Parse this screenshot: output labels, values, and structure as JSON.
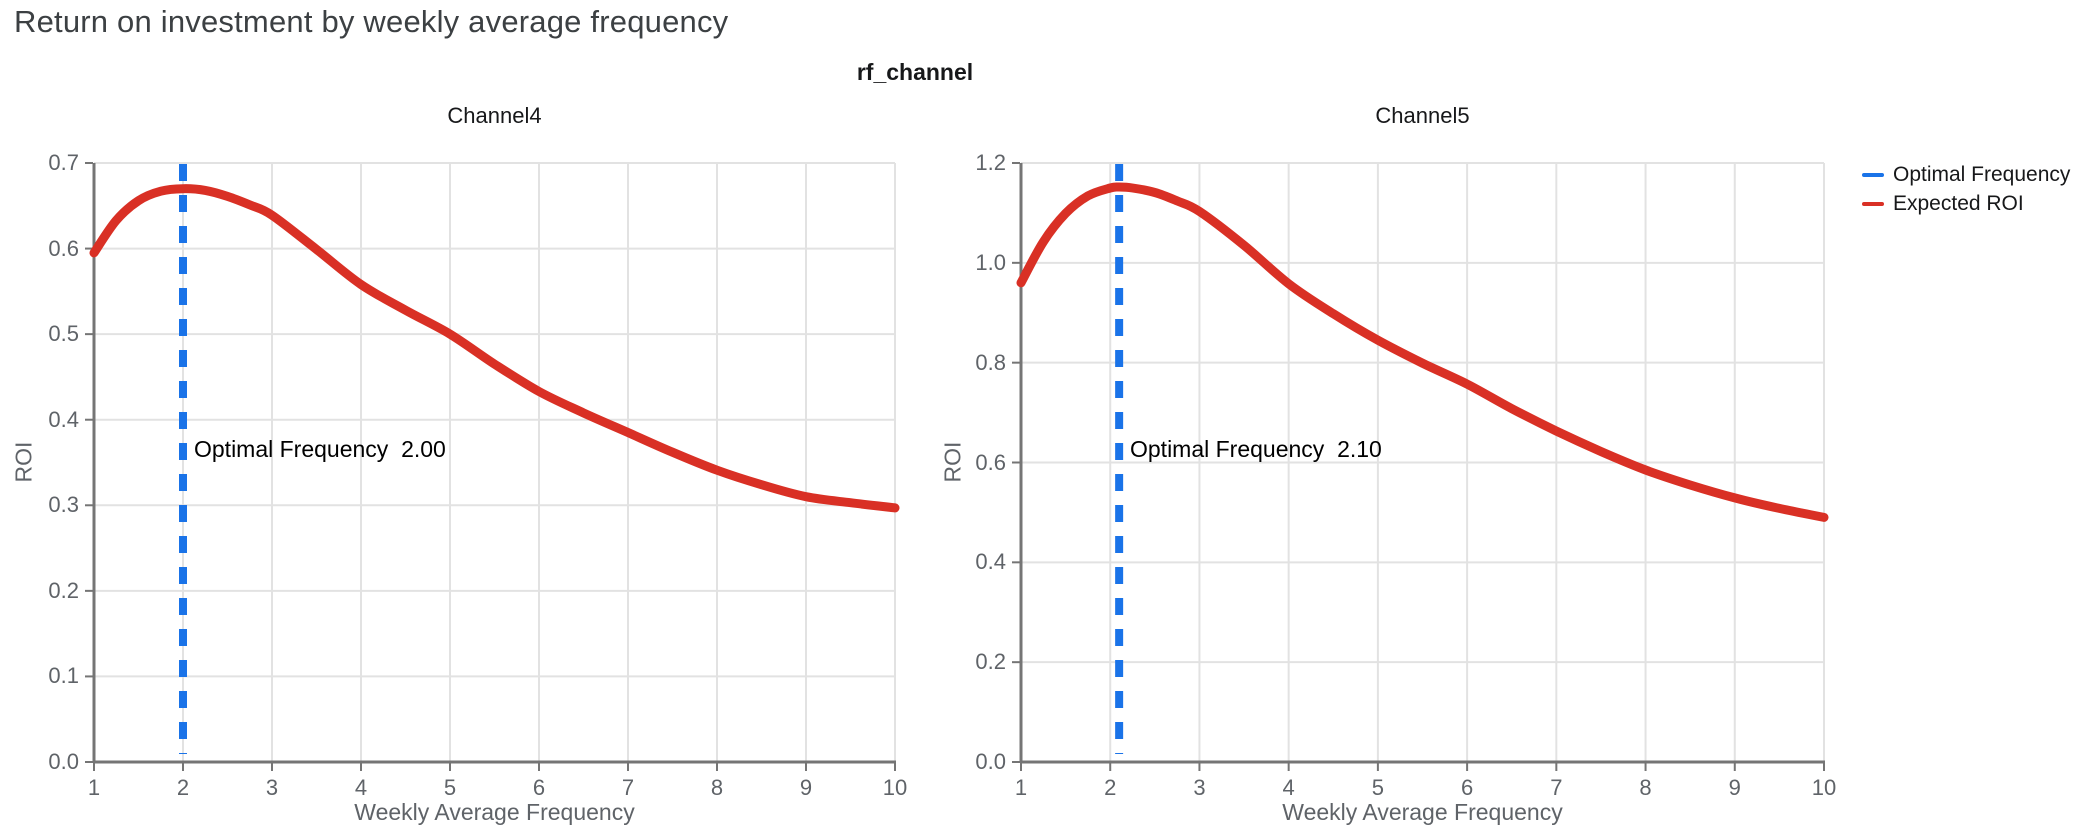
{
  "page_title": "Return on investment by weekly average frequency",
  "facet_title": "rf_channel",
  "colors": {
    "expected_roi_red": "#d93025",
    "optimal_frequency_blue": "#1a73e8",
    "gridline": "#e2e2e2",
    "axis_spine": "#757575",
    "tick_label": "#5f6368",
    "title_gray": "#3c4043"
  },
  "legend": {
    "items": [
      {
        "label": "Optimal Frequency",
        "color": "#1a73e8"
      },
      {
        "label": "Expected ROI",
        "color": "#d93025"
      }
    ]
  },
  "chart_data": [
    {
      "type": "line",
      "title": "Channel4",
      "xlabel": "Weekly Average Frequency",
      "ylabel": "ROI",
      "xlim": [
        1,
        10
      ],
      "ylim": [
        0,
        0.7
      ],
      "x_ticks": [
        "1",
        "2",
        "3",
        "4",
        "5",
        "6",
        "7",
        "8",
        "9",
        "10"
      ],
      "y_ticks": [
        "0.0",
        "0.1",
        "0.2",
        "0.3",
        "0.4",
        "0.5",
        "0.6",
        "0.7"
      ],
      "grid": true,
      "legend_position": "top-right-outside",
      "optimal_frequency": 2.0,
      "annotation": "Optimal Frequency  2.00",
      "series": [
        {
          "name": "Expected ROI",
          "x": [
            1,
            1.25,
            1.5,
            1.75,
            2,
            2.25,
            2.5,
            2.75,
            3,
            3.5,
            4,
            4.5,
            5,
            5.5,
            6,
            6.5,
            7,
            7.5,
            8,
            8.5,
            9,
            9.5,
            10
          ],
          "y": [
            0.595,
            0.633,
            0.656,
            0.667,
            0.67,
            0.668,
            0.661,
            0.651,
            0.639,
            0.599,
            0.558,
            0.528,
            0.5,
            0.465,
            0.433,
            0.408,
            0.385,
            0.362,
            0.341,
            0.324,
            0.31,
            0.303,
            0.297
          ]
        }
      ]
    },
    {
      "type": "line",
      "title": "Channel5",
      "xlabel": "Weekly Average Frequency",
      "ylabel": "ROI",
      "xlim": [
        1,
        10
      ],
      "ylim": [
        0,
        1.2
      ],
      "x_ticks": [
        "1",
        "2",
        "3",
        "4",
        "5",
        "6",
        "7",
        "8",
        "9",
        "10"
      ],
      "y_ticks": [
        "0.0",
        "0.2",
        "0.4",
        "0.6",
        "0.8",
        "1.0",
        "1.2"
      ],
      "grid": true,
      "legend_position": "top-right-outside",
      "optimal_frequency": 2.1,
      "annotation": "Optimal Frequency  2.10",
      "series": [
        {
          "name": "Expected ROI",
          "x": [
            1,
            1.25,
            1.5,
            1.75,
            2,
            2.1,
            2.25,
            2.5,
            2.75,
            3,
            3.5,
            4,
            4.5,
            5,
            5.5,
            6,
            6.5,
            7,
            7.5,
            8,
            8.5,
            9,
            9.5,
            10
          ],
          "y": [
            0.96,
            1.042,
            1.099,
            1.134,
            1.15,
            1.152,
            1.15,
            1.141,
            1.124,
            1.103,
            1.035,
            0.958,
            0.898,
            0.845,
            0.799,
            0.757,
            0.708,
            0.663,
            0.622,
            0.585,
            0.555,
            0.529,
            0.508,
            0.49
          ]
        }
      ]
    }
  ]
}
